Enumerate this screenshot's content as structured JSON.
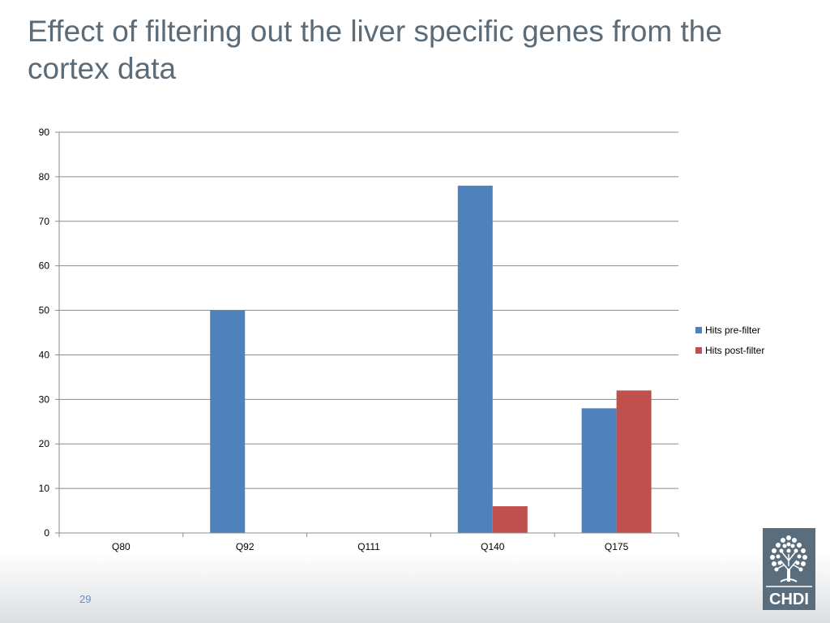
{
  "slide": {
    "title": "Effect of filtering out the liver specific genes from the cortex data",
    "page_number": "29",
    "logo_text": "CHDI"
  },
  "colors": {
    "title": "#5b6b78",
    "series_pre": "#4f81bd",
    "series_post": "#c0504d",
    "gridline": "#8c8c8c",
    "page_number": "#6b8cc7",
    "logo_bg": "#5a6d7d"
  },
  "chart_data": {
    "type": "bar",
    "categories": [
      "Q80",
      "Q92",
      "Q111",
      "Q140",
      "Q175"
    ],
    "series": [
      {
        "name": "Hits pre-filter",
        "values": [
          0,
          50,
          0,
          78,
          28
        ]
      },
      {
        "name": "Hits post-filter",
        "values": [
          0,
          0,
          0,
          6,
          32
        ]
      }
    ],
    "title": "",
    "xlabel": "",
    "ylabel": "",
    "ylim": [
      0,
      90
    ],
    "yticks": [
      0,
      10,
      20,
      30,
      40,
      50,
      60,
      70,
      80,
      90
    ],
    "grid": true,
    "legend": "right"
  }
}
